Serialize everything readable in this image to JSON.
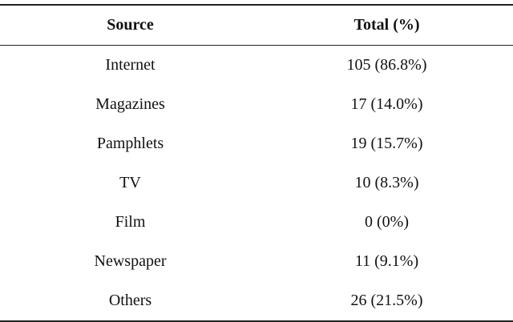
{
  "table": {
    "headers": [
      "Source",
      "Total (%)"
    ],
    "rows": [
      {
        "source": "Internet",
        "total": "105 (86.8%)"
      },
      {
        "source": "Magazines",
        "total": "17 (14.0%)"
      },
      {
        "source": "Pamphlets",
        "total": "19 (15.7%)"
      },
      {
        "source": "TV",
        "total": "10 (8.3%)"
      },
      {
        "source": "Film",
        "total": "0 (0%)"
      },
      {
        "source": "Newspaper",
        "total": "11 (9.1%)"
      },
      {
        "source": "Others",
        "total": "26 (21.5%)"
      }
    ]
  }
}
